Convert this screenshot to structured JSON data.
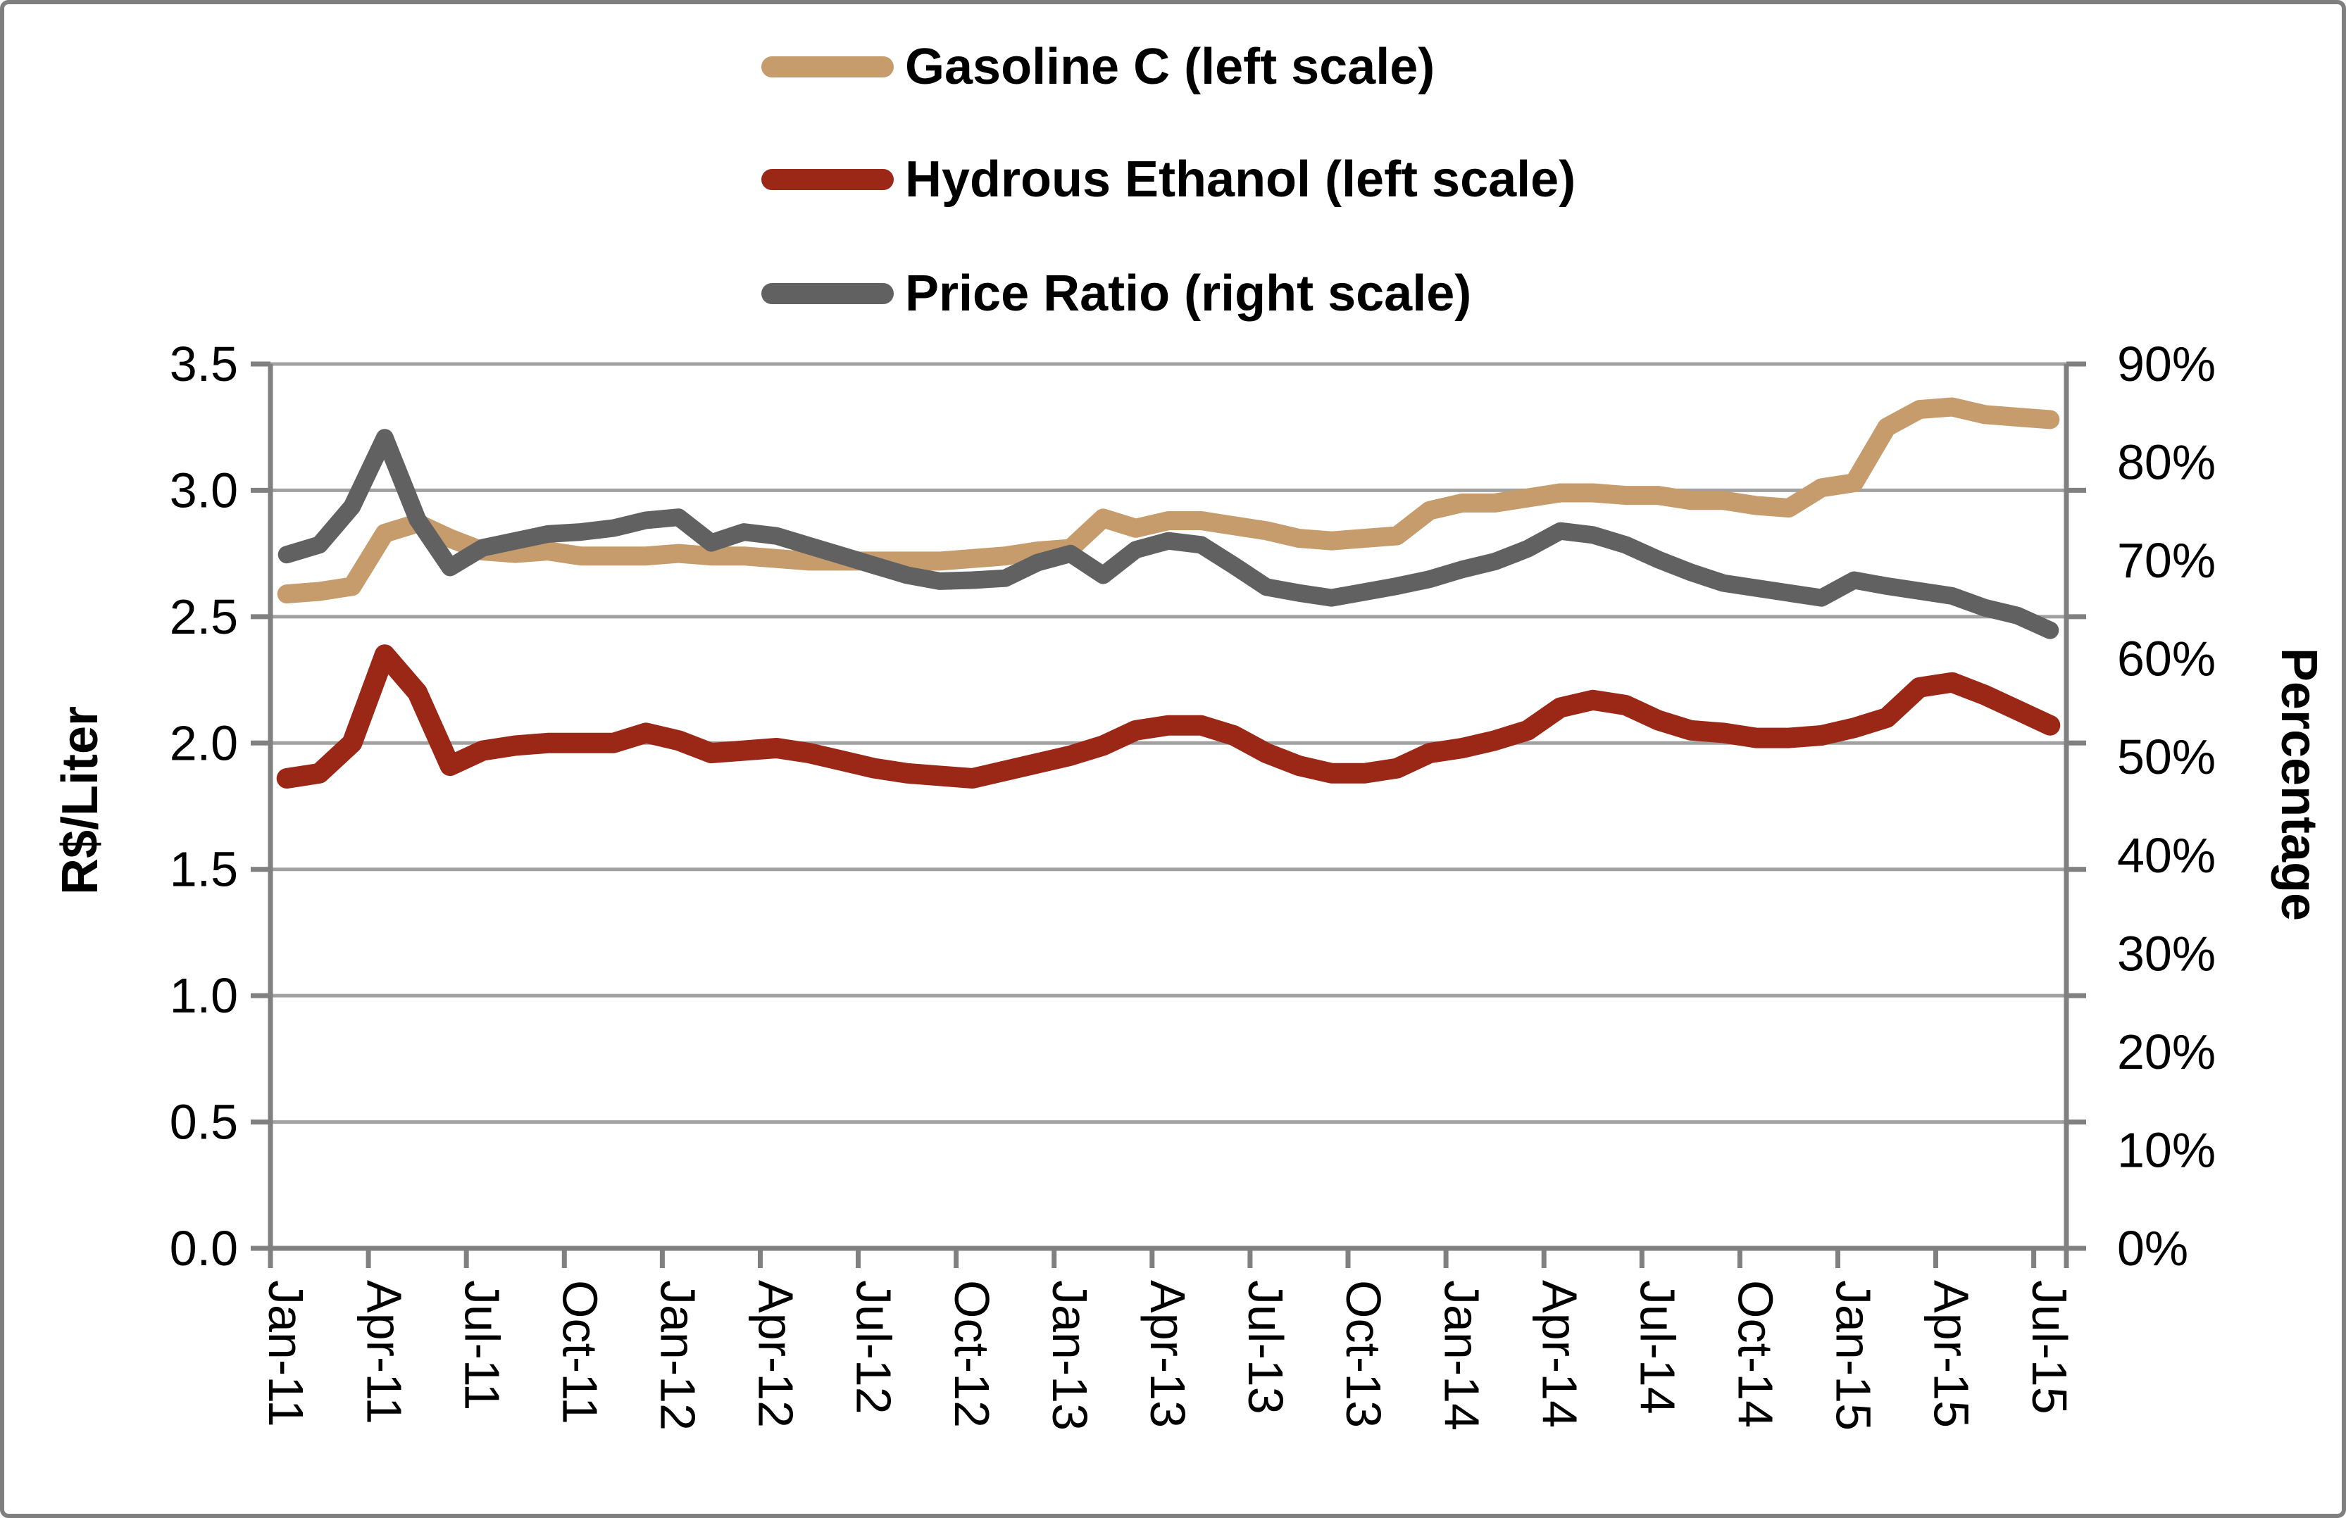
{
  "figure": {
    "background": "#FFFFFF",
    "border_color": "#7F7F7F"
  },
  "legend": {
    "items": [
      {
        "label": "Gasoline C (left scale)",
        "color": "#C69C6D"
      },
      {
        "label": "Hydrous Ethanol (left scale)",
        "color": "#9B2817"
      },
      {
        "label": "Price Ratio (right scale)",
        "color": "#616161"
      }
    ]
  },
  "chart_data": {
    "type": "line",
    "categories": [
      "Jan-11",
      "Feb-11",
      "Mar-11",
      "Apr-11",
      "May-11",
      "Jun-11",
      "Jul-11",
      "Aug-11",
      "Sep-11",
      "Oct-11",
      "Nov-11",
      "Dec-11",
      "Jan-12",
      "Feb-12",
      "Mar-12",
      "Apr-12",
      "May-12",
      "Jun-12",
      "Jul-12",
      "Aug-12",
      "Sep-12",
      "Oct-12",
      "Nov-12",
      "Dec-12",
      "Jan-13",
      "Feb-13",
      "Mar-13",
      "Apr-13",
      "May-13",
      "Jun-13",
      "Jul-13",
      "Aug-13",
      "Sep-13",
      "Oct-13",
      "Nov-13",
      "Dec-13",
      "Jan-14",
      "Feb-14",
      "Mar-14",
      "Apr-14",
      "May-14",
      "Jun-14",
      "Jul-14",
      "Aug-14",
      "Sep-14",
      "Oct-14",
      "Nov-14",
      "Dec-14",
      "Jan-15",
      "Feb-15",
      "Mar-15",
      "Apr-15",
      "May-15",
      "Jun-15",
      "Jul-15"
    ],
    "series": [
      {
        "name": "Gasoline C (left scale)",
        "axis": "left",
        "color": "#C69C6D",
        "stroke_width": 27,
        "values": [
          2.59,
          2.6,
          2.62,
          2.83,
          2.87,
          2.81,
          2.76,
          2.75,
          2.76,
          2.74,
          2.74,
          2.74,
          2.75,
          2.74,
          2.74,
          2.73,
          2.72,
          2.72,
          2.72,
          2.72,
          2.72,
          2.73,
          2.74,
          2.76,
          2.77,
          2.89,
          2.85,
          2.88,
          2.88,
          2.86,
          2.84,
          2.81,
          2.8,
          2.81,
          2.82,
          2.92,
          2.95,
          2.95,
          2.97,
          2.99,
          2.99,
          2.98,
          2.98,
          2.96,
          2.96,
          2.94,
          2.93,
          3.01,
          3.03,
          3.25,
          3.32,
          3.33,
          3.3,
          3.29,
          3.28
        ]
      },
      {
        "name": "Hydrous Ethanol (left scale)",
        "axis": "left",
        "color": "#9B2817",
        "stroke_width": 29,
        "values": [
          1.86,
          1.88,
          2.0,
          2.35,
          2.2,
          1.91,
          1.97,
          1.99,
          2.0,
          2.0,
          2.0,
          2.04,
          2.01,
          1.96,
          1.97,
          1.98,
          1.96,
          1.93,
          1.9,
          1.88,
          1.87,
          1.86,
          1.89,
          1.92,
          1.95,
          1.99,
          2.05,
          2.07,
          2.07,
          2.03,
          1.96,
          1.91,
          1.88,
          1.88,
          1.9,
          1.96,
          1.98,
          2.01,
          2.05,
          2.14,
          2.17,
          2.15,
          2.09,
          2.05,
          2.04,
          2.02,
          2.02,
          2.03,
          2.06,
          2.1,
          2.22,
          2.24,
          2.19,
          2.13,
          2.07
        ]
      },
      {
        "name": "Price Ratio (right scale)",
        "axis": "right",
        "color": "#616161",
        "stroke_width": 25,
        "values": [
          70.6,
          71.6,
          75.5,
          82.5,
          74.2,
          69.3,
          71.3,
          72.0,
          72.7,
          72.9,
          73.3,
          74.1,
          74.4,
          71.8,
          72.9,
          72.5,
          71.5,
          70.5,
          69.5,
          68.5,
          67.9,
          68.0,
          68.2,
          69.8,
          70.7,
          68.5,
          71.1,
          72.0,
          71.6,
          69.5,
          67.3,
          66.7,
          66.2,
          66.8,
          67.4,
          68.1,
          69.1,
          69.9,
          71.2,
          73.0,
          72.6,
          71.6,
          70.1,
          68.8,
          67.7,
          67.2,
          66.7,
          66.2,
          68.0,
          67.4,
          66.9,
          66.4,
          65.2,
          64.4,
          62.9
        ]
      }
    ],
    "left_axis": {
      "title": "R$/Liter",
      "min": 0,
      "max": 3.5,
      "step": 0.5,
      "tick_labels": [
        "3.5",
        "3.0",
        "2.5",
        "2.0",
        "1.5",
        "1.0",
        "0.5",
        "0.0"
      ]
    },
    "right_axis": {
      "title": "Percentage",
      "min": 0,
      "max": 90,
      "step": 10,
      "tick_labels": [
        "90%",
        "80%",
        "70%",
        "60%",
        "50%",
        "40%",
        "30%",
        "20%",
        "10%",
        "0%"
      ]
    },
    "x_axis": {
      "tick_label_every": 3,
      "tick_labels": [
        "Jan-11",
        "Apr-11",
        "Jul-11",
        "Oct-11",
        "Jan-12",
        "Apr-12",
        "Jul-12",
        "Oct-12",
        "Jan-13",
        "Apr-13",
        "Jul-13",
        "Oct-13",
        "Jan-14",
        "Apr-14",
        "Jul-14",
        "Oct-14",
        "Jan-15",
        "Apr-15",
        "Jul-15"
      ]
    },
    "grid": {
      "horizontal": true,
      "vertical": false,
      "gridline_color": "#A1A1A1",
      "axis_color": "#808080"
    },
    "legend_position": "top"
  }
}
